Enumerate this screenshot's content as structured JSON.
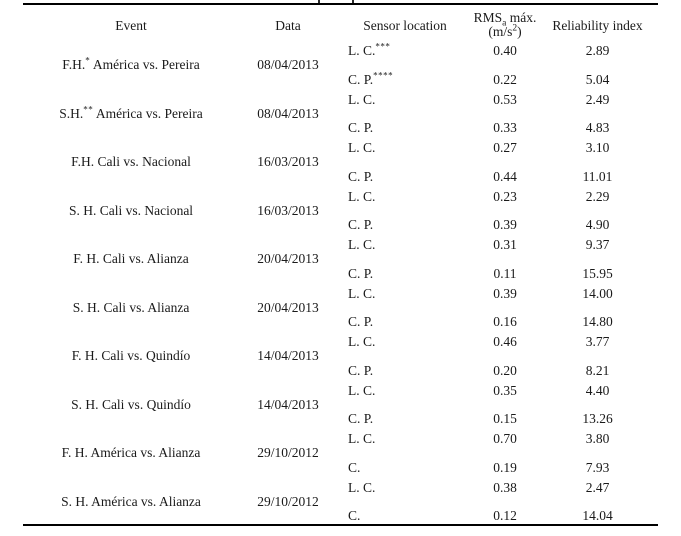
{
  "table": {
    "header": {
      "event": "Event",
      "data": "Data",
      "sensor_location": "Sensor location",
      "rms": {
        "base": "RMS",
        "sub": "a",
        "rest": " máx.",
        "unit_open": "(m/s",
        "unit_sup": "2",
        "unit_close": ")"
      },
      "reliability": "Reliability index"
    },
    "groups": [
      {
        "event": {
          "prefix": "F.H.",
          "sup": "*",
          "rest": " América vs. Pereira"
        },
        "date": "08/04/2013",
        "rows": [
          {
            "sensor": "L. C.",
            "sup": "***",
            "rms": "0.40",
            "reliability": "2.89"
          },
          {
            "sensor": "C. P.",
            "sup": "****",
            "rms": "0.22",
            "reliability": "5.04"
          }
        ]
      },
      {
        "event": {
          "prefix": "S.H.",
          "sup": "**",
          "rest": " América vs. Pereira"
        },
        "date": "08/04/2013",
        "rows": [
          {
            "sensor": "L. C.",
            "sup": "",
            "rms": "0.53",
            "reliability": "2.49"
          },
          {
            "sensor": "C. P.",
            "sup": "",
            "rms": "0.33",
            "reliability": "4.83"
          }
        ]
      },
      {
        "event": {
          "prefix": "F.H.",
          "sup": "",
          "rest": " Cali vs. Nacional"
        },
        "date": "16/03/2013",
        "rows": [
          {
            "sensor": "L. C.",
            "sup": "",
            "rms": "0.27",
            "reliability": "3.10"
          },
          {
            "sensor": "C. P.",
            "sup": "",
            "rms": "0.44",
            "reliability": "11.01"
          }
        ]
      },
      {
        "event": {
          "prefix": "S. H.",
          "sup": "",
          "rest": " Cali vs. Nacional"
        },
        "date": "16/03/2013",
        "rows": [
          {
            "sensor": "L. C.",
            "sup": "",
            "rms": "0.23",
            "reliability": "2.29"
          },
          {
            "sensor": "C. P.",
            "sup": "",
            "rms": "0.39",
            "reliability": "4.90"
          }
        ]
      },
      {
        "event": {
          "prefix": "F. H.",
          "sup": "",
          "rest": " Cali vs. Alianza"
        },
        "date": "20/04/2013",
        "rows": [
          {
            "sensor": "L. C.",
            "sup": "",
            "rms": "0.31",
            "reliability": "9.37"
          },
          {
            "sensor": "C. P.",
            "sup": "",
            "rms": "0.11",
            "reliability": "15.95"
          }
        ]
      },
      {
        "event": {
          "prefix": "S. H.",
          "sup": "",
          "rest": " Cali vs. Alianza"
        },
        "date": "20/04/2013",
        "rows": [
          {
            "sensor": "L. C.",
            "sup": "",
            "rms": "0.39",
            "reliability": "14.00"
          },
          {
            "sensor": "C. P.",
            "sup": "",
            "rms": "0.16",
            "reliability": "14.80"
          }
        ]
      },
      {
        "event": {
          "prefix": "F. H.",
          "sup": "",
          "rest": " Cali vs. Quindío"
        },
        "date": "14/04/2013",
        "rows": [
          {
            "sensor": "L. C.",
            "sup": "",
            "rms": "0.46",
            "reliability": "3.77"
          },
          {
            "sensor": "C. P.",
            "sup": "",
            "rms": "0.20",
            "reliability": "8.21"
          }
        ]
      },
      {
        "event": {
          "prefix": "S. H.",
          "sup": "",
          "rest": " Cali vs. Quindío"
        },
        "date": "14/04/2013",
        "rows": [
          {
            "sensor": "L. C.",
            "sup": "",
            "rms": "0.35",
            "reliability": "4.40"
          },
          {
            "sensor": "C. P.",
            "sup": "",
            "rms": "0.15",
            "reliability": "13.26"
          }
        ]
      },
      {
        "event": {
          "prefix": "F. H.",
          "sup": "",
          "rest": " América vs. Alianza"
        },
        "date": "29/10/2012",
        "rows": [
          {
            "sensor": "L. C.",
            "sup": "",
            "rms": "0.70",
            "reliability": "3.80"
          },
          {
            "sensor": "C.",
            "sup": "",
            "rms": "0.19",
            "reliability": "7.93"
          }
        ]
      },
      {
        "event": {
          "prefix": "S. H.",
          "sup": "",
          "rest": " América vs. Alianza"
        },
        "date": "29/10/2012",
        "rows": [
          {
            "sensor": "L. C.",
            "sup": "",
            "rms": "0.38",
            "reliability": "2.47"
          },
          {
            "sensor": "C.",
            "sup": "",
            "rms": "0.12",
            "reliability": "14.04"
          }
        ]
      }
    ]
  }
}
